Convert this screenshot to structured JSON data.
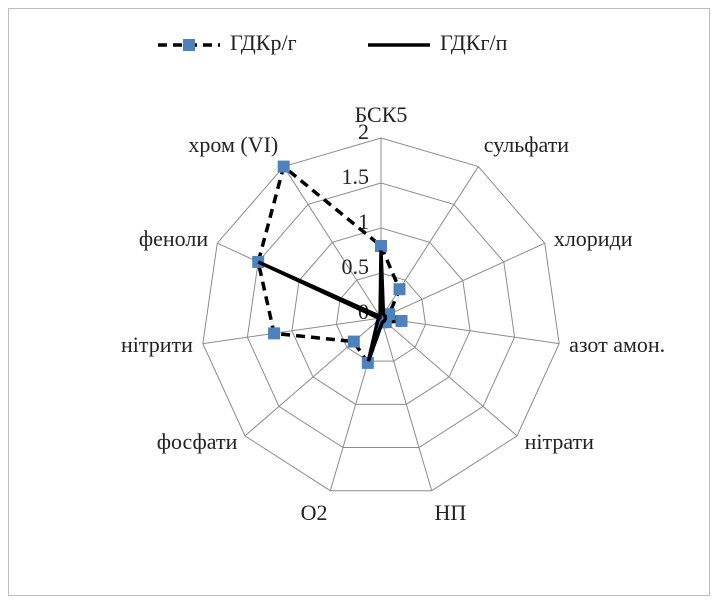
{
  "chart_data": {
    "type": "radar",
    "categories": [
      "БСК5",
      "сульфати",
      "хлориди",
      "азот амон.",
      "нітрати",
      "НП",
      "О2",
      "фосфати",
      "нітрити",
      "феноли",
      "хром (VI)"
    ],
    "series": [
      {
        "name": "ГДКр/г",
        "color": "#4f81bd",
        "line_color": "#000000",
        "dashed": true,
        "marker": "square",
        "values": [
          0.8,
          0.38,
          0.1,
          0.23,
          0.07,
          0.05,
          0.52,
          0.4,
          1.2,
          1.5,
          2.0
        ]
      },
      {
        "name": "ГДКг/п",
        "color": "#000000",
        "line_color": "#000000",
        "dashed": false,
        "marker": "none",
        "values": [
          0.75,
          0.05,
          0.05,
          0.05,
          0.05,
          0.05,
          0.5,
          0.05,
          0.02,
          1.5,
          0.02
        ]
      }
    ],
    "ylim": [
      0,
      2
    ],
    "yticks": [
      0,
      0.5,
      1,
      1.5,
      2
    ],
    "grid": true,
    "legend": "top"
  }
}
